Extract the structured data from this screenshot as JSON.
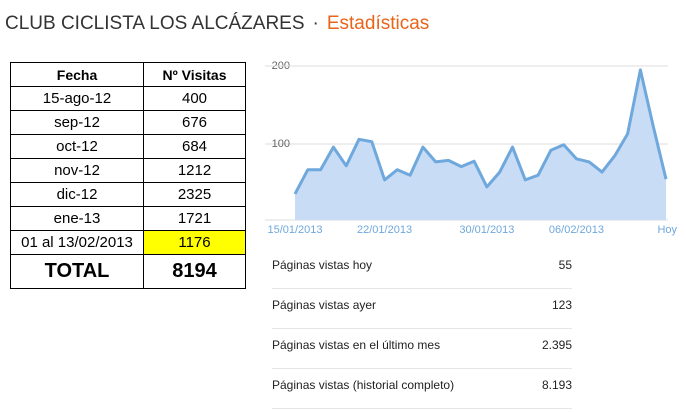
{
  "header": {
    "title": "CLUB CICLISTA LOS ALCÁZARES",
    "separator": "·",
    "subtitle": "Estadísticas"
  },
  "visits_table": {
    "columns": [
      "Fecha",
      "Nº Visitas"
    ],
    "rows": [
      [
        "15-ago-12",
        "400"
      ],
      [
        "sep-12",
        "676"
      ],
      [
        "oct-12",
        "684"
      ],
      [
        "nov-12",
        "1212"
      ],
      [
        "dic-12",
        "2325"
      ],
      [
        "ene-13",
        "1721"
      ],
      [
        "01 al 13/02/2013",
        "1176"
      ]
    ],
    "total": [
      "TOTAL",
      "8194"
    ]
  },
  "chart_data": {
    "type": "area",
    "categories": [
      "15/01/2013",
      null,
      null,
      null,
      null,
      null,
      null,
      "22/01/2013",
      null,
      null,
      null,
      null,
      null,
      null,
      null,
      "30/01/2013",
      null,
      null,
      null,
      null,
      null,
      null,
      "06/02/2013",
      null,
      null,
      null,
      null,
      null,
      null,
      "Hoy"
    ],
    "values": [
      36,
      67,
      67,
      96,
      72,
      106,
      103,
      54,
      67,
      60,
      96,
      77,
      79,
      71,
      78,
      45,
      64,
      96,
      54,
      60,
      92,
      99,
      81,
      77,
      64,
      85,
      113,
      195,
      123,
      55
    ],
    "color": "#6fa8dc",
    "fill_color": "#c9dcf5",
    "ylim": [
      0,
      200
    ],
    "yticks": [
      100,
      200
    ],
    "grid": true
  },
  "stats": {
    "rows": [
      [
        "Páginas vistas hoy",
        "55"
      ],
      [
        "Páginas vistas ayer",
        "123"
      ],
      [
        "Páginas vistas en el último mes",
        "2.395"
      ],
      [
        "Páginas vistas (historial completo)",
        "8.193"
      ]
    ]
  }
}
